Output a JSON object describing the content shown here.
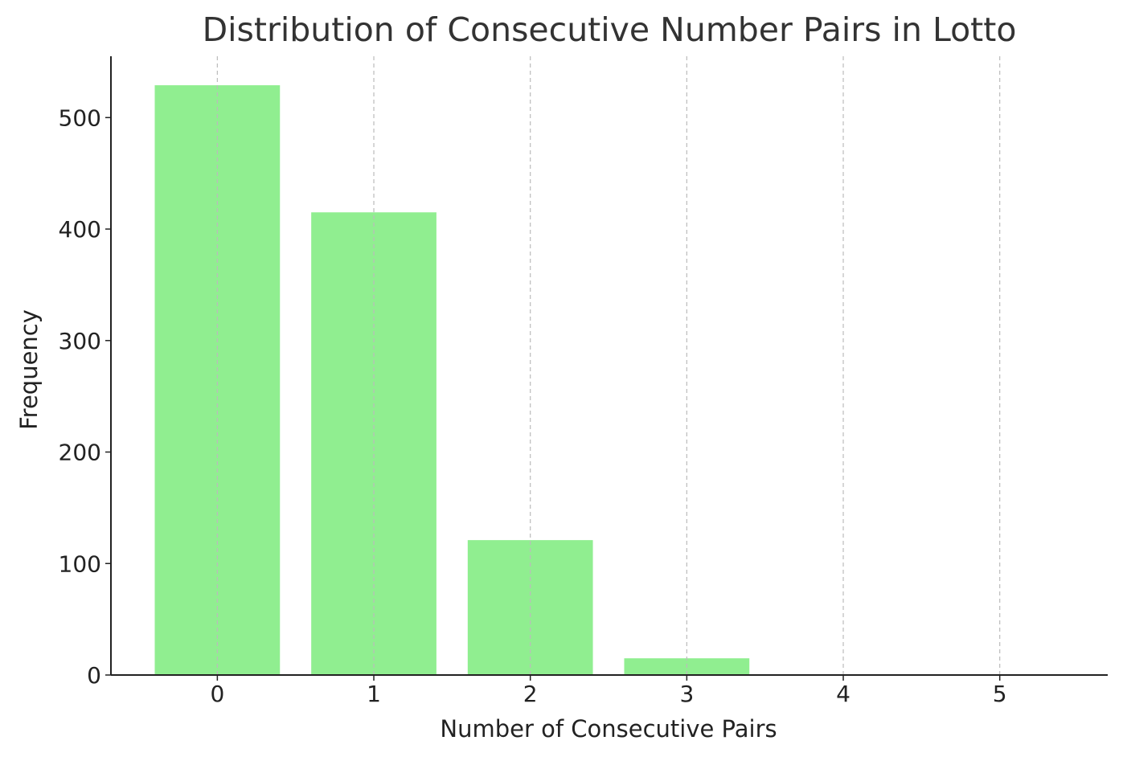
{
  "chart_data": {
    "type": "bar",
    "title": "Distribution of Consecutive Number Pairs in Lotto",
    "x_label": "Number of Consecutive Pairs",
    "y_label": "Frequency",
    "x": [
      0,
      1,
      2,
      3,
      4,
      5
    ],
    "values": [
      529,
      415,
      121,
      15,
      0,
      0
    ],
    "color": "#90ee90",
    "xlim": [
      -0.68,
      5.69
    ],
    "xticks": [
      0,
      1,
      2,
      3,
      4,
      5
    ],
    "ylim": [
      0,
      555
    ],
    "yticks": [
      0,
      100,
      200,
      300,
      400,
      500
    ],
    "grid": true
  }
}
